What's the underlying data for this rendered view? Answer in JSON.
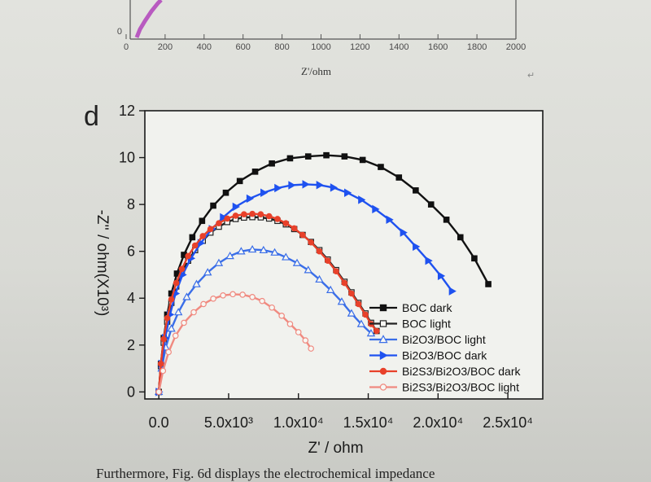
{
  "top_chart": {
    "x_ticks": [
      "0",
      "200",
      "400",
      "600",
      "800",
      "1000",
      "1200",
      "1400",
      "1600",
      "1800",
      "2000"
    ],
    "y_tick": "0",
    "xlabel": "Z'/ohm",
    "series_color": "#b85ac0"
  },
  "panel_label": "d",
  "paragraph_mark": "↵",
  "chart_data": {
    "type": "line",
    "title": "",
    "xlabel": "Z' / ohm",
    "ylabel": "-Z'' / ohm(X10³)",
    "xlim": [
      -1000,
      27500
    ],
    "ylim": [
      -0.3,
      12
    ],
    "x_ticks": [
      {
        "v": 0,
        "label": "0.0"
      },
      {
        "v": 5000,
        "label": "5.0x10³"
      },
      {
        "v": 10000,
        "label": "1.0x10⁴"
      },
      {
        "v": 15000,
        "label": "1.5x10⁴"
      },
      {
        "v": 20000,
        "label": "2.0x10⁴"
      },
      {
        "v": 25000,
        "label": "2.5x10⁴"
      }
    ],
    "y_ticks": [
      {
        "v": 0,
        "label": "0"
      },
      {
        "v": 2,
        "label": "2"
      },
      {
        "v": 4,
        "label": "4"
      },
      {
        "v": 6,
        "label": "6"
      },
      {
        "v": 8,
        "label": "8"
      },
      {
        "v": 10,
        "label": "10"
      },
      {
        "v": 12,
        "label": "12"
      }
    ],
    "legend_position": "bottom-right",
    "series": [
      {
        "name": "BOC dark",
        "color": "#111111",
        "marker": "square",
        "filled": true,
        "x": [
          0,
          150,
          350,
          600,
          900,
          1300,
          1800,
          2400,
          3100,
          3900,
          4800,
          5800,
          6900,
          8100,
          9400,
          10700,
          12000,
          13300,
          14600,
          15900,
          17200,
          18400,
          19500,
          20600,
          21600,
          22600,
          23600
        ],
        "y": [
          0,
          1.2,
          2.3,
          3.3,
          4.2,
          5.05,
          5.85,
          6.6,
          7.3,
          7.95,
          8.5,
          9.0,
          9.4,
          9.75,
          9.97,
          10.05,
          10.1,
          10.05,
          9.9,
          9.6,
          9.15,
          8.6,
          8.0,
          7.35,
          6.6,
          5.7,
          4.6
        ]
      },
      {
        "name": "BOC light",
        "color": "#222222",
        "marker": "square",
        "filled": false,
        "x": [
          0,
          150,
          350,
          600,
          900,
          1250,
          1650,
          2100,
          2600,
          3150,
          3700,
          4300,
          4900,
          5500,
          6100,
          6700,
          7300,
          7900,
          8500,
          9100,
          9700,
          10300,
          10900,
          11500,
          12100,
          12700,
          13300,
          13800,
          14300,
          14800,
          15200,
          15600
        ],
        "y": [
          0,
          1.1,
          2.1,
          3.0,
          3.8,
          4.5,
          5.1,
          5.6,
          6.05,
          6.45,
          6.8,
          7.05,
          7.25,
          7.38,
          7.44,
          7.46,
          7.45,
          7.4,
          7.3,
          7.15,
          6.95,
          6.7,
          6.4,
          6.05,
          5.65,
          5.2,
          4.7,
          4.25,
          3.8,
          3.35,
          2.95,
          2.6
        ]
      },
      {
        "name": "Bi2O3/BOC light",
        "color": "#3a6ee8",
        "marker": "triangle-up",
        "filled": false,
        "x": [
          0,
          200,
          500,
          900,
          1400,
          2000,
          2700,
          3500,
          4300,
          5100,
          5900,
          6700,
          7500,
          8300,
          9100,
          9900,
          10700,
          11500,
          12300,
          13100,
          13800,
          14500,
          15200
        ],
        "y": [
          0,
          1.0,
          1.9,
          2.7,
          3.4,
          4.05,
          4.6,
          5.1,
          5.5,
          5.8,
          6.0,
          6.08,
          6.05,
          5.95,
          5.75,
          5.5,
          5.2,
          4.8,
          4.35,
          3.85,
          3.35,
          2.9,
          2.5
        ]
      },
      {
        "name": "Bi2O3/BOC dark",
        "color": "#1f52f0",
        "marker": "triangle-right",
        "filled": true,
        "x": [
          0,
          200,
          450,
          800,
          1200,
          1700,
          2300,
          3000,
          3800,
          4600,
          5500,
          6500,
          7500,
          8500,
          9500,
          10500,
          11500,
          12500,
          13500,
          14500,
          15500,
          16500,
          17500,
          18400,
          19300,
          20200,
          21000
        ],
        "y": [
          0,
          1.2,
          2.3,
          3.3,
          4.2,
          5.0,
          5.7,
          6.35,
          6.95,
          7.45,
          7.9,
          8.25,
          8.5,
          8.7,
          8.82,
          8.86,
          8.83,
          8.72,
          8.5,
          8.2,
          7.8,
          7.35,
          6.8,
          6.2,
          5.6,
          4.95,
          4.3
        ]
      },
      {
        "name": "Bi2S3/Bi2O3/BOC dark",
        "color": "#e8412a",
        "marker": "circle",
        "filled": true,
        "x": [
          0,
          150,
          350,
          600,
          900,
          1250,
          1650,
          2100,
          2600,
          3150,
          3700,
          4300,
          4900,
          5500,
          6100,
          6700,
          7300,
          7900,
          8500,
          9100,
          9700,
          10300,
          10900,
          11500,
          12100,
          12700,
          13300,
          13800,
          14300,
          14800,
          15200,
          15600
        ],
        "y": [
          0,
          1.2,
          2.25,
          3.15,
          3.95,
          4.65,
          5.25,
          5.8,
          6.25,
          6.65,
          6.95,
          7.2,
          7.4,
          7.52,
          7.58,
          7.6,
          7.58,
          7.5,
          7.38,
          7.2,
          6.98,
          6.7,
          6.38,
          6.0,
          5.6,
          5.15,
          4.65,
          4.2,
          3.75,
          3.3,
          2.9,
          2.6
        ]
      },
      {
        "name": "Bi2S3/Bi2O3/BOC light",
        "color": "#f08a80",
        "marker": "circle",
        "filled": false,
        "x": [
          0,
          300,
          700,
          1200,
          1800,
          2500,
          3200,
          3900,
          4600,
          5300,
          6000,
          6700,
          7400,
          8100,
          8800,
          9400,
          10000,
          10500,
          10900
        ],
        "y": [
          0,
          0.9,
          1.7,
          2.4,
          2.95,
          3.4,
          3.75,
          3.98,
          4.12,
          4.17,
          4.15,
          4.05,
          3.88,
          3.6,
          3.25,
          2.9,
          2.55,
          2.2,
          1.85
        ]
      }
    ]
  },
  "bottom_text": "Furthermore, Fig. 6d displays the electrochemical impedance"
}
